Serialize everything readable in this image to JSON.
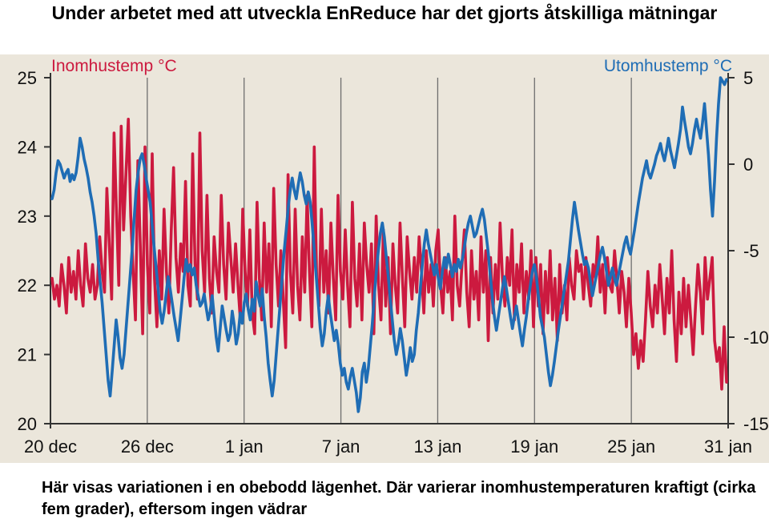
{
  "title": "Under arbetet med att utveckla EnReduce har det gjorts åtskilliga mätningar",
  "caption": "Här visas variationen i en obebodd lägenhet. Där varierar inomhustemperaturen kraftigt (cirka fem grader), eftersom ingen vädrar",
  "colors": {
    "indoor": "#cc1a3f",
    "outdoor": "#1f6db5",
    "background": "#ebe6db",
    "grid": "#6e6e6e"
  },
  "chart_data": {
    "type": "line",
    "x_start": "20 dec",
    "x_end": "31 jan",
    "x_tick_labels": [
      "20 dec",
      "26 dec",
      "1 jan",
      "7 jan",
      "13 jan",
      "19 jan",
      "25 jan",
      "31 jan"
    ],
    "y_left": {
      "label": "Inomhustemp °C",
      "ticks": [
        20,
        21,
        22,
        23,
        24,
        25
      ],
      "range": [
        20,
        25
      ]
    },
    "y_right": {
      "label": "Utomhustemp °C",
      "ticks": [
        5,
        0,
        -5,
        -10,
        -15
      ],
      "tick_labels": [
        "5",
        "0",
        "-5",
        "-10",
        "-15"
      ],
      "range": [
        -15,
        5
      ]
    },
    "grid": true,
    "series": [
      {
        "name": "Inomhustemp °C",
        "axis": "left",
        "color": "#cc1a3f",
        "values": [
          22.1,
          21.8,
          22.0,
          21.7,
          22.3,
          22.0,
          21.6,
          22.4,
          21.9,
          22.2,
          21.8,
          22.5,
          22.0,
          21.7,
          22.6,
          22.1,
          21.9,
          22.3,
          21.8,
          22.0,
          22.7,
          22.2,
          21.9,
          23.4,
          22.6,
          21.8,
          24.2,
          23.1,
          22.0,
          24.3,
          22.8,
          23.6,
          24.4,
          23.0,
          22.2,
          21.5,
          23.8,
          22.6,
          21.3,
          24.0,
          22.3,
          21.6,
          23.9,
          22.1,
          21.4,
          22.5,
          21.8,
          23.1,
          22.2,
          21.6,
          22.8,
          23.7,
          22.4,
          21.9,
          22.6,
          22.2,
          23.5,
          22.0,
          21.7,
          23.9,
          22.3,
          21.8,
          24.2,
          22.5,
          21.9,
          23.3,
          22.1,
          21.6,
          22.7,
          22.2,
          21.9,
          23.3,
          22.3,
          21.8,
          22.9,
          22.4,
          21.9,
          22.6,
          22.0,
          21.5,
          23.1,
          22.2,
          21.7,
          22.8,
          21.6,
          21.3,
          23.2,
          22.1,
          21.5,
          22.9,
          21.9,
          22.6,
          21.4,
          23.4,
          22.3,
          21.7,
          22.5,
          21.8,
          21.1,
          23.6,
          22.2,
          21.6,
          23.1,
          22.0,
          21.5,
          22.7,
          21.9,
          23.3,
          22.2,
          21.4,
          24.0,
          22.1,
          21.7,
          23.1,
          21.9,
          22.5,
          21.6,
          22.9,
          22.1,
          21.5,
          23.3,
          22.2,
          21.8,
          22.8,
          22.0,
          21.4,
          23.2,
          22.1,
          21.7,
          22.6,
          21.5,
          22.9,
          22.3,
          21.9,
          22.6,
          21.3,
          23.0,
          22.0,
          21.5,
          22.8,
          21.7,
          22.4,
          21.3,
          22.6,
          22.0,
          21.6,
          22.9,
          22.1,
          21.4,
          22.7,
          22.2,
          21.8,
          22.4,
          21.9,
          22.7,
          22.2,
          21.6,
          22.5,
          21.9,
          22.3,
          21.7,
          22.5,
          22.8,
          22.0,
          21.6,
          22.4,
          21.9,
          22.2,
          21.5,
          23.0,
          22.0,
          21.7,
          22.3,
          22.8,
          21.9,
          21.4,
          22.5,
          21.8,
          22.2,
          21.5,
          22.7,
          21.9,
          22.5,
          21.2,
          22.4,
          21.6,
          22.3,
          21.8,
          22.9,
          22.1,
          21.7,
          22.4,
          22.0,
          22.8,
          21.5,
          22.3,
          21.9,
          22.6,
          21.6,
          22.2,
          21.8,
          22.5,
          21.4,
          22.4,
          21.7,
          22.3,
          21.3,
          22.2,
          21.6,
          22.5,
          21.5,
          22.1,
          21.2,
          22.3,
          21.6,
          22.0,
          21.5,
          22.4,
          22.0,
          21.8,
          22.5,
          22.2,
          22.3,
          21.8,
          22.4,
          22.0,
          21.7,
          22.3,
          22.1,
          22.7,
          21.9,
          22.3,
          21.6,
          22.4,
          22.0,
          21.9,
          22.5,
          22.1,
          21.6,
          22.2,
          21.9,
          21.4,
          22.1,
          21.6,
          21.0,
          21.3,
          20.8,
          21.2,
          20.9,
          21.5,
          22.2,
          21.7,
          21.4,
          22.0,
          21.6,
          22.3,
          21.8,
          21.3,
          22.1,
          21.6,
          22.5,
          21.5,
          20.9,
          21.9,
          21.3,
          22.1,
          21.4,
          22.0,
          21.5,
          21.0,
          21.7,
          22.3,
          21.9,
          21.3,
          22.4,
          21.8,
          22.1,
          22.4,
          21.2,
          20.9,
          21.1,
          20.5,
          21.4,
          20.6
        ]
      },
      {
        "name": "Utomhustemp °C",
        "axis": "right",
        "color": "#1f6db5",
        "values": [
          -2.0,
          -1.5,
          -0.5,
          0.2,
          0.0,
          -0.4,
          -0.8,
          -0.5,
          -0.3,
          -1.0,
          -0.6,
          -0.9,
          -0.5,
          0.4,
          1.5,
          1.0,
          0.3,
          -0.2,
          -0.8,
          -1.6,
          -2.2,
          -3.0,
          -4.0,
          -5.5,
          -6.8,
          -8.0,
          -9.5,
          -11.0,
          -12.5,
          -13.4,
          -12.0,
          -10.5,
          -9.0,
          -10.0,
          -11.2,
          -11.8,
          -11.0,
          -9.5,
          -8.0,
          -6.5,
          -5.0,
          -3.2,
          -1.5,
          -0.5,
          0.3,
          0.6,
          0.0,
          -0.8,
          -1.5,
          -2.2,
          -3.5,
          -4.8,
          -6.0,
          -7.2,
          -8.5,
          -9.2,
          -8.5,
          -7.5,
          -6.5,
          -7.2,
          -8.0,
          -8.8,
          -9.5,
          -10.2,
          -9.0,
          -7.8,
          -6.5,
          -5.5,
          -6.2,
          -5.8,
          -6.4,
          -6.0,
          -7.0,
          -7.6,
          -8.2,
          -8.0,
          -7.5,
          -8.3,
          -9.0,
          -8.5,
          -7.6,
          -8.8,
          -10.0,
          -10.8,
          -9.5,
          -8.2,
          -8.9,
          -9.6,
          -10.2,
          -9.8,
          -8.5,
          -9.3,
          -10.4,
          -9.8,
          -8.6,
          -9.2,
          -8.0,
          -7.5,
          -8.4,
          -9.0,
          -7.8,
          -8.5,
          -6.8,
          -7.6,
          -8.2,
          -7.2,
          -8.8,
          -10.0,
          -11.5,
          -12.5,
          -13.4,
          -12.5,
          -11.0,
          -9.5,
          -8.0,
          -6.5,
          -5.0,
          -3.8,
          -2.5,
          -1.5,
          -0.8,
          -1.5,
          -2.0,
          -1.2,
          -0.5,
          -1.0,
          -1.8,
          -2.3,
          -1.6,
          -2.2,
          -3.5,
          -5.0,
          -6.5,
          -8.0,
          -9.5,
          -10.5,
          -9.8,
          -8.5,
          -7.6,
          -8.6,
          -9.4,
          -10.2,
          -9.6,
          -10.4,
          -11.5,
          -12.2,
          -11.8,
          -12.6,
          -13.0,
          -12.3,
          -11.8,
          -12.5,
          -13.2,
          -14.3,
          -13.5,
          -12.0,
          -11.5,
          -12.6,
          -11.8,
          -10.5,
          -9.2,
          -7.6,
          -6.2,
          -5.0,
          -4.0,
          -3.4,
          -4.2,
          -5.4,
          -6.5,
          -7.8,
          -9.0,
          -10.2,
          -11.0,
          -10.4,
          -9.5,
          -10.2,
          -11.2,
          -12.2,
          -11.5,
          -10.6,
          -11.4,
          -11.0,
          -9.6,
          -8.6,
          -7.2,
          -5.8,
          -4.6,
          -3.8,
          -4.6,
          -5.2,
          -5.8,
          -6.4,
          -5.8,
          -6.6,
          -7.2,
          -6.2,
          -5.4,
          -6.0,
          -5.2,
          -5.8,
          -6.5,
          -5.8,
          -6.2,
          -5.5,
          -6.0,
          -5.5,
          -4.8,
          -4.0,
          -3.4,
          -3.0,
          -3.6,
          -4.2,
          -4.0,
          -3.5,
          -3.0,
          -2.6,
          -3.2,
          -4.2,
          -5.2,
          -6.5,
          -7.8,
          -8.8,
          -9.6,
          -8.8,
          -8.0,
          -7.2,
          -6.5,
          -7.2,
          -8.0,
          -8.8,
          -9.5,
          -8.8,
          -8.2,
          -9.0,
          -9.8,
          -10.5,
          -9.6,
          -8.8,
          -7.8,
          -7.0,
          -6.2,
          -5.8,
          -6.5,
          -7.6,
          -8.8,
          -9.4,
          -10.0,
          -11.0,
          -12.0,
          -12.8,
          -12.2,
          -11.4,
          -10.5,
          -9.6,
          -8.8,
          -8.0,
          -7.2,
          -6.4,
          -5.6,
          -4.4,
          -3.2,
          -2.2,
          -3.0,
          -3.8,
          -4.5,
          -5.2,
          -5.8,
          -5.6,
          -6.0,
          -6.8,
          -7.6,
          -7.0,
          -6.4,
          -5.8,
          -5.2,
          -4.8,
          -5.4,
          -6.2,
          -7.0,
          -6.5,
          -6.0,
          -6.6,
          -7.0,
          -6.4,
          -5.8,
          -5.2,
          -4.6,
          -4.2,
          -4.8,
          -5.2,
          -4.5,
          -3.8,
          -3.0,
          -2.2,
          -1.5,
          -0.8,
          -0.3,
          0.2,
          -0.5,
          -0.8,
          -0.4,
          0.0,
          0.5,
          0.8,
          1.2,
          0.6,
          0.2,
          0.8,
          1.5,
          0.8,
          0.3,
          -0.2,
          0.5,
          1.2,
          2.0,
          3.3,
          2.5,
          1.8,
          1.0,
          0.6,
          1.2,
          2.0,
          2.6,
          2.0,
          1.5,
          2.4,
          3.5,
          2.0,
          0.5,
          -1.5,
          -3.0,
          -1.0,
          1.5,
          3.5,
          5.0,
          4.8,
          4.6,
          4.9
        ]
      }
    ]
  }
}
